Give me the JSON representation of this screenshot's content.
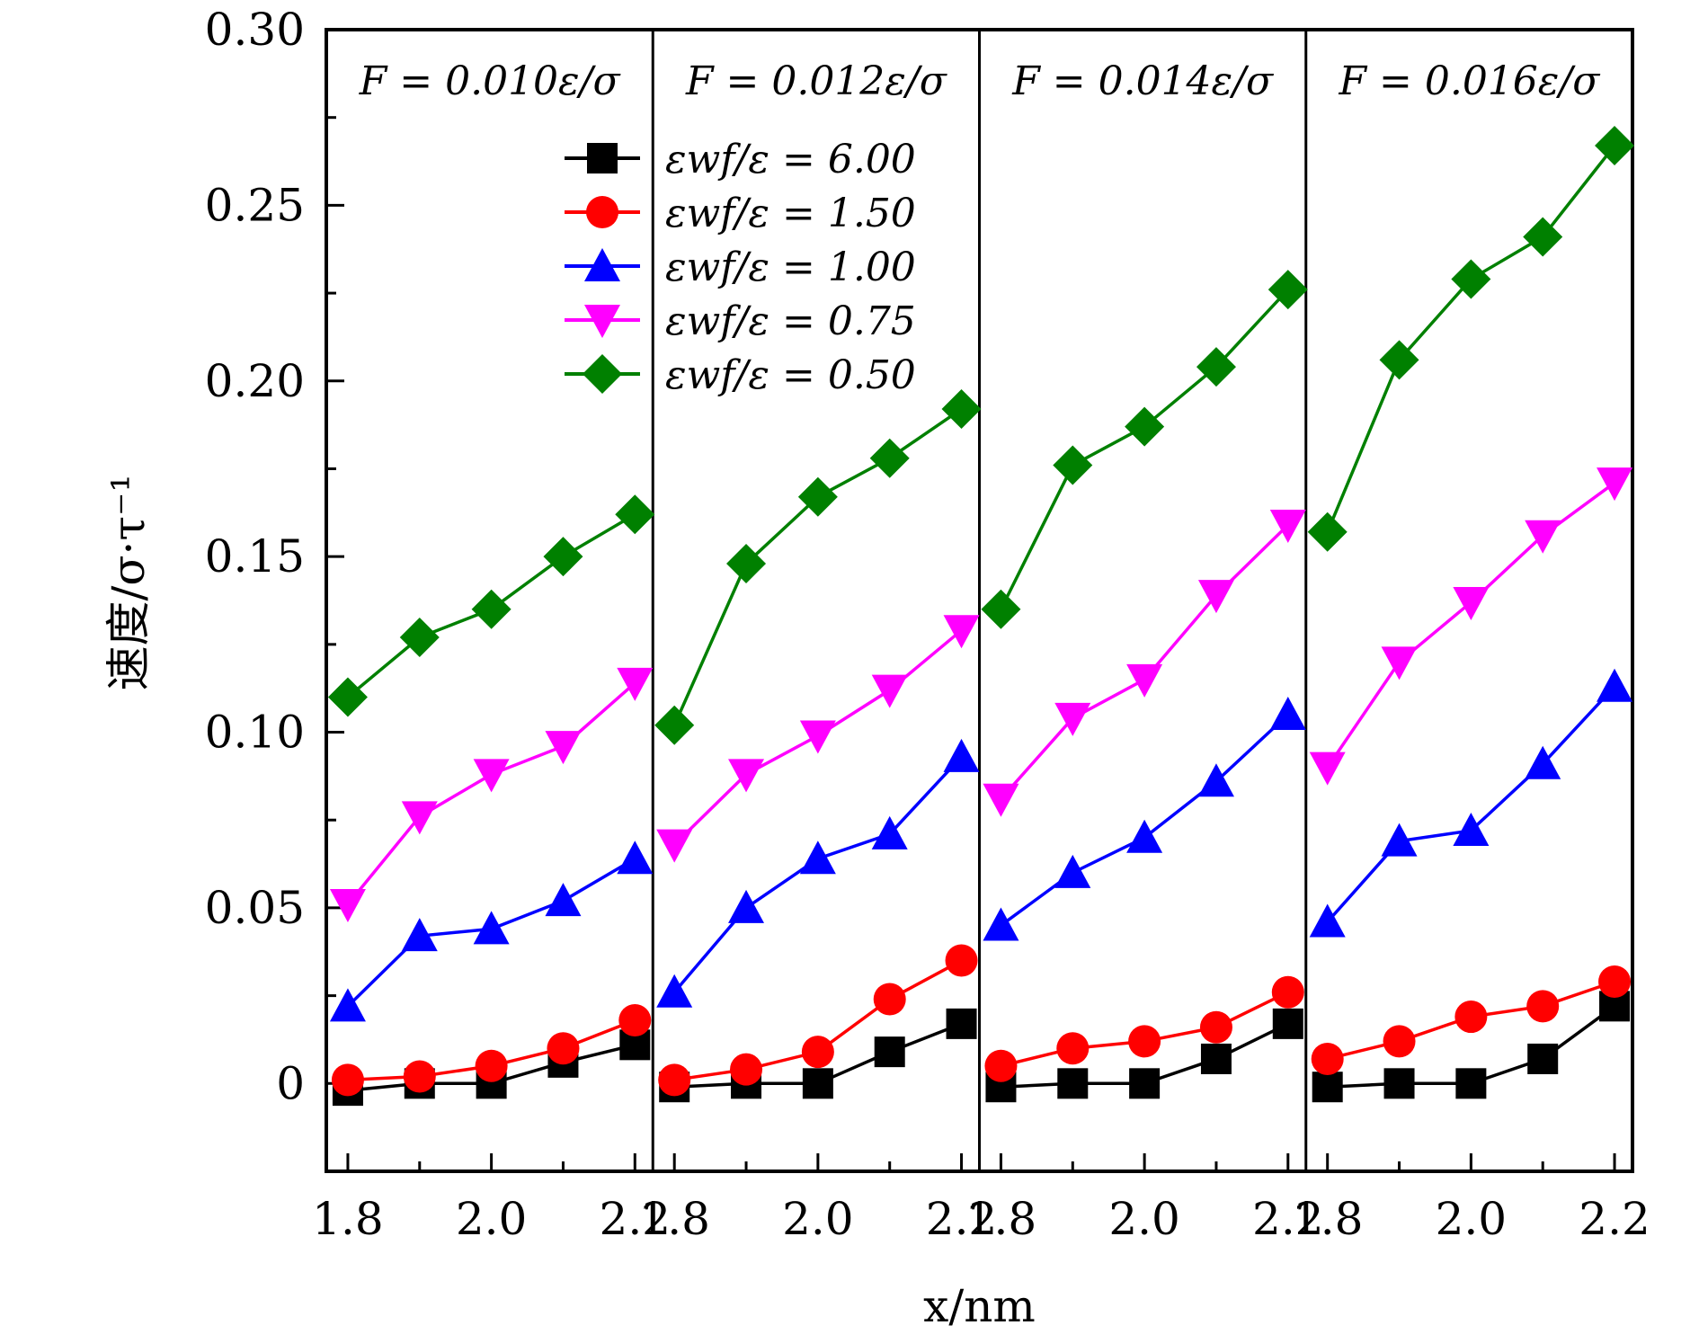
{
  "chart_data": {
    "type": "line",
    "ylabel": "速度/σ·τ⁻¹",
    "xlabel": "x/nm",
    "ylim": [
      -0.025,
      0.3
    ],
    "xlim": [
      1.77,
      2.225
    ],
    "yticks": [
      0,
      0.05,
      0.1,
      0.15,
      0.2,
      0.25,
      0.3
    ],
    "ytick_labels": [
      "0",
      "0.05",
      "0.10",
      "0.15",
      "0.20",
      "0.25",
      "0.30"
    ],
    "xticks": [
      1.8,
      2.0,
      2.2
    ],
    "xtick_labels": [
      "1.8",
      "2.0",
      "2.2"
    ],
    "x": [
      1.8,
      1.9,
      2.0,
      2.1,
      2.2
    ],
    "series_styles": [
      {
        "name": "εwf/ε = 6.00",
        "color": "#000000",
        "marker": "square"
      },
      {
        "name": "εwf/ε = 1.50",
        "color": "#ff0000",
        "marker": "circle"
      },
      {
        "name": "εwf/ε = 1.00",
        "color": "#0000ff",
        "marker": "triangle-up"
      },
      {
        "name": "εwf/ε = 0.75",
        "color": "#ff00ff",
        "marker": "triangle-down"
      },
      {
        "name": "εwf/ε = 0.50",
        "color": "#008000",
        "marker": "diamond"
      }
    ],
    "legend": {
      "location": "top-right of first panel",
      "entries": [
        "εwf/ε = 6.00",
        "εwf/ε = 1.50",
        "εwf/ε = 1.00",
        "εwf/ε = 0.75",
        "εwf/ε = 0.50"
      ]
    },
    "panels": [
      {
        "title": "F = 0.010ε/σ",
        "series": [
          {
            "name": "εwf/ε = 6.00",
            "values": [
              -0.002,
              0.0,
              0.0,
              0.006,
              0.011
            ]
          },
          {
            "name": "εwf/ε = 1.50",
            "values": [
              0.001,
              0.002,
              0.005,
              0.01,
              0.018
            ]
          },
          {
            "name": "εwf/ε = 1.00",
            "values": [
              0.022,
              0.042,
              0.044,
              0.052,
              0.064
            ]
          },
          {
            "name": "εwf/ε = 0.75",
            "values": [
              0.051,
              0.076,
              0.088,
              0.096,
              0.114
            ]
          },
          {
            "name": "εwf/ε = 0.50",
            "values": [
              0.11,
              0.127,
              0.135,
              0.15,
              0.162
            ]
          }
        ]
      },
      {
        "title": "F = 0.012ε/σ",
        "series": [
          {
            "name": "εwf/ε = 6.00",
            "values": [
              -0.001,
              0.0,
              0.0,
              0.009,
              0.017
            ]
          },
          {
            "name": "εwf/ε = 1.50",
            "values": [
              0.001,
              0.004,
              0.009,
              0.024,
              0.035
            ]
          },
          {
            "name": "εwf/ε = 1.00",
            "values": [
              0.026,
              0.05,
              0.064,
              0.071,
              0.093
            ]
          },
          {
            "name": "εwf/ε = 0.75",
            "values": [
              0.068,
              0.088,
              0.099,
              0.112,
              0.129
            ]
          },
          {
            "name": "εwf/ε = 0.50",
            "values": [
              0.102,
              0.148,
              0.167,
              0.178,
              0.192
            ]
          }
        ]
      },
      {
        "title": "F = 0.014ε/σ",
        "series": [
          {
            "name": "εwf/ε = 6.00",
            "values": [
              -0.001,
              0.0,
              0.0,
              0.007,
              0.017
            ]
          },
          {
            "name": "εwf/ε = 1.50",
            "values": [
              0.005,
              0.01,
              0.012,
              0.016,
              0.026
            ]
          },
          {
            "name": "εwf/ε = 1.00",
            "values": [
              0.045,
              0.06,
              0.07,
              0.086,
              0.105
            ]
          },
          {
            "name": "εwf/ε = 0.75",
            "values": [
              0.081,
              0.104,
              0.115,
              0.139,
              0.159
            ]
          },
          {
            "name": "εwf/ε = 0.50",
            "values": [
              0.135,
              0.176,
              0.187,
              0.204,
              0.226
            ]
          }
        ]
      },
      {
        "title": "F = 0.016ε/σ",
        "series": [
          {
            "name": "εwf/ε = 6.00",
            "values": [
              -0.001,
              0.0,
              0.0,
              0.007,
              0.022
            ]
          },
          {
            "name": "εwf/ε = 1.50",
            "values": [
              0.007,
              0.012,
              0.019,
              0.022,
              0.029
            ]
          },
          {
            "name": "εwf/ε = 1.00",
            "values": [
              0.046,
              0.069,
              0.072,
              0.091,
              0.113
            ]
          },
          {
            "name": "εwf/ε = 0.75",
            "values": [
              0.09,
              0.12,
              0.137,
              0.156,
              0.171
            ]
          },
          {
            "name": "εwf/ε = 0.50",
            "values": [
              0.157,
              0.206,
              0.229,
              0.241,
              0.267
            ]
          }
        ]
      }
    ]
  }
}
